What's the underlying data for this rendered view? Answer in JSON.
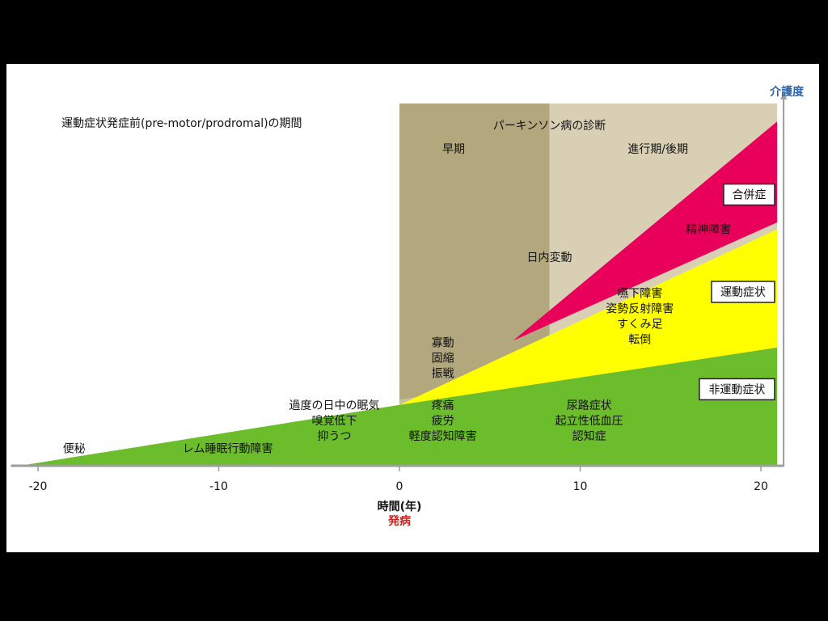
{
  "chart_data": {
    "type": "area",
    "title": "",
    "xlabel": "時間(年)",
    "onset_label": "発病",
    "ylabel": "介護度",
    "xlim": [
      -21.5,
      20.9
    ],
    "x_ticks": [
      -20,
      -10,
      0,
      10,
      20
    ],
    "x_tick_labels": [
      "-20",
      "-10",
      "0",
      "10",
      "20"
    ],
    "ylim": [
      0,
      100
    ],
    "phases": [
      {
        "name": "早期",
        "x": [
          0,
          8.3
        ],
        "color": "#b3a77e"
      },
      {
        "name": "進行期/後期",
        "x": [
          8.3,
          20.9
        ],
        "color": "#d8cfb5"
      }
    ],
    "diagnosis_label": "パーキンソン病の診断",
    "prodromal_label": "運動症状発症前(pre-motor/prodromal)の期間",
    "series": [
      {
        "name": "非運動症状",
        "color": "#6cbd2c",
        "lower": {
          "x": [
            -21,
            20.9
          ],
          "y": [
            0,
            0
          ]
        },
        "upper": {
          "x": [
            -21,
            0,
            20.9
          ],
          "y": [
            0,
            17.5,
            34
          ]
        }
      },
      {
        "name": "運動症状",
        "color": "#ffff00",
        "lower": {
          "x": [
            0,
            20.9
          ],
          "y": [
            17.5,
            34
          ]
        },
        "upper": {
          "x": [
            0,
            20.9
          ],
          "y": [
            17.5,
            68
          ]
        }
      },
      {
        "name": "合併症",
        "color": "#e8005a",
        "lower": {
          "x": [
            6.3,
            20.9
          ],
          "y": [
            36,
            70
          ]
        },
        "upper": {
          "x": [
            6.3,
            20.9
          ],
          "y": [
            36,
            99
          ]
        }
      }
    ],
    "series_labels": [
      {
        "name": "合併症",
        "x": 20.4,
        "y": 78
      },
      {
        "name": "運動症状",
        "x": 20.4,
        "y": 50
      },
      {
        "name": "非運動症状",
        "x": 20.4,
        "y": 22
      }
    ],
    "annotations": [
      {
        "lines": [
          "便秘"
        ],
        "x": -18,
        "y": 5
      },
      {
        "lines": [
          "レム睡眠行動障害"
        ],
        "x": -9.5,
        "y": 5
      },
      {
        "lines": [
          "過度の日中の眠気",
          "嗅覚低下",
          "抑うつ"
        ],
        "x": -3.6,
        "y": 13
      },
      {
        "lines": [
          "疼痛",
          "疲労",
          "軽度認知障害"
        ],
        "x": 2.4,
        "y": 13
      },
      {
        "lines": [
          "尿路症状",
          "起立性低血圧",
          "認知症"
        ],
        "x": 10.5,
        "y": 13
      },
      {
        "lines": [
          "寡動",
          "固縮",
          "振戦"
        ],
        "x": 2.4,
        "y": 31
      },
      {
        "lines": [
          "嚥下障害",
          "姿勢反射障害",
          "すくみ足",
          "転倒"
        ],
        "x": 13.3,
        "y": 43
      },
      {
        "lines": [
          "精神障害"
        ],
        "x": 17.1,
        "y": 68
      },
      {
        "lines": [
          "日内変動"
        ],
        "x": 8.3,
        "y": 60
      }
    ]
  }
}
